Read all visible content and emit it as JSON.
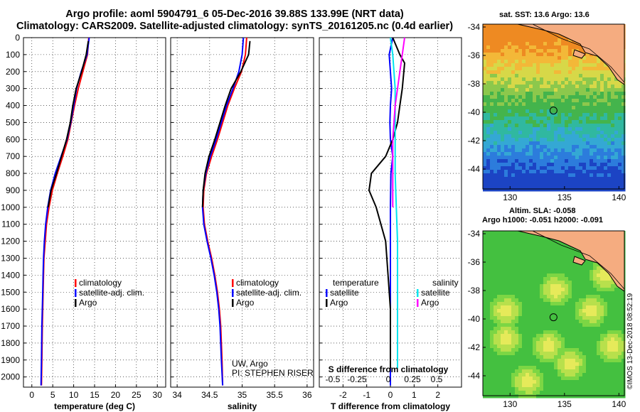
{
  "header": {
    "title_line1": "Argo profile: aoml 5904791_6 05-Dec-2016 39.88S 133.99E (NRT data)",
    "title_line2": "Climatology: CARS2009. Satellite-adjusted climatology: synTS_20161205.nc (0.4d earlier)"
  },
  "colors": {
    "climatology": "#ff0000",
    "satellite": "#0000ff",
    "argo": "#000000",
    "sat_salinity": "#00e5ee",
    "argo_salinity": "#ff00ff"
  },
  "depth_ticks": [
    "0",
    "100",
    "200",
    "300",
    "400",
    "500",
    "600",
    "700",
    "800",
    "900",
    "1000",
    "1100",
    "1200",
    "1300",
    "1400",
    "1500",
    "1600",
    "1700",
    "1800",
    "1900",
    "2000"
  ],
  "chart_data": [
    {
      "type": "line",
      "xlabel": "temperature (deg C)",
      "xticks": [
        "0",
        "5",
        "10",
        "15",
        "20",
        "25",
        "30"
      ],
      "xlim": [
        -2,
        32
      ],
      "ylim": [
        2060,
        0
      ],
      "legend": [
        "climatology",
        "satellite-adj. clim.",
        "Argo"
      ],
      "series": [
        {
          "name": "climatology",
          "x": [
            13.6,
            13.3,
            12.2,
            11.1,
            10.2,
            9.4,
            8.6,
            7.4,
            6.1,
            4.9,
            4.1,
            3.5,
            3.2,
            2.9,
            2.8,
            2.7,
            2.6,
            2.5,
            2.4,
            2.3
          ],
          "y": [
            0,
            100,
            200,
            300,
            400,
            500,
            600,
            700,
            800,
            900,
            1000,
            1100,
            1200,
            1300,
            1400,
            1500,
            1600,
            1700,
            1900,
            2050
          ]
        },
        {
          "name": "satellite-adj. clim.",
          "x": [
            13.7,
            13.2,
            11.8,
            10.7,
            10.0,
            9.3,
            8.4,
            7.0,
            5.6,
            4.5,
            3.8,
            3.3,
            3.0,
            2.8,
            2.7,
            2.6,
            2.5,
            2.4,
            2.3,
            2.2
          ],
          "y": [
            0,
            100,
            200,
            300,
            400,
            500,
            600,
            700,
            800,
            900,
            1000,
            1100,
            1200,
            1300,
            1400,
            1500,
            1600,
            1700,
            1900,
            2050
          ]
        },
        {
          "name": "Argo",
          "x": [
            13.5,
            13.0,
            11.9,
            10.6,
            9.8,
            9.2,
            8.3,
            7.1,
            5.9,
            4.6,
            3.9
          ],
          "y": [
            20,
            100,
            200,
            300,
            400,
            500,
            600,
            700,
            800,
            900,
            1000
          ]
        }
      ]
    },
    {
      "type": "line",
      "xlabel": "salinity",
      "xticks": [
        "34",
        "34.5",
        "35",
        "35.5",
        "36"
      ],
      "xlim": [
        33.9,
        36.1
      ],
      "ylim": [
        2060,
        0
      ],
      "legend": [
        "climatology",
        "satellite-adj. clim.",
        "Argo"
      ],
      "annotations": [
        "UW, Argo",
        "PI: STEPHEN RISER"
      ],
      "series": [
        {
          "name": "climatology",
          "x": [
            35.07,
            35.05,
            34.99,
            34.88,
            34.78,
            34.7,
            34.62,
            34.53,
            34.45,
            34.41,
            34.4,
            34.42,
            34.47,
            34.53,
            34.58,
            34.62,
            34.65,
            34.67,
            34.69,
            34.7
          ],
          "y": [
            0,
            100,
            200,
            300,
            400,
            500,
            600,
            700,
            800,
            900,
            1000,
            1100,
            1200,
            1300,
            1400,
            1500,
            1600,
            1700,
            1900,
            2050
          ]
        },
        {
          "name": "satellite-adj. clim.",
          "x": [
            35.02,
            35.0,
            34.95,
            34.86,
            34.76,
            34.68,
            34.6,
            34.51,
            34.44,
            34.4,
            34.39,
            34.41,
            34.46,
            34.52,
            34.57,
            34.61,
            34.64,
            34.66,
            34.68,
            34.7
          ],
          "y": [
            0,
            100,
            200,
            300,
            400,
            500,
            600,
            700,
            800,
            900,
            1000,
            1100,
            1200,
            1300,
            1400,
            1500,
            1600,
            1700,
            1900,
            2050
          ]
        },
        {
          "name": "Argo",
          "x": [
            35.12,
            35.1,
            34.98,
            34.83,
            34.74,
            34.66,
            34.58,
            34.49,
            34.43,
            34.4,
            34.39
          ],
          "y": [
            20,
            100,
            200,
            300,
            400,
            500,
            600,
            700,
            800,
            900,
            1000
          ]
        }
      ]
    },
    {
      "type": "line",
      "xlabel": "T difference from climatology",
      "title": "S difference from climatology",
      "xticks": [
        "-2",
        "-1",
        "0",
        "1",
        "2"
      ],
      "sticks": [
        "-0.5",
        "-0.25",
        "0",
        "0.25",
        "0.5"
      ],
      "xlim": [
        -3,
        3
      ],
      "ylim": [
        2060,
        0
      ],
      "legend": {
        "heading_temperature": "temperature",
        "heading_salinity": "salinity",
        "satellite": "satellite",
        "argo": "Argo"
      },
      "series": [
        {
          "name": "satellite",
          "x": [
            0.1,
            -0.05,
            0.0,
            0.05,
            0.0,
            -0.02,
            0.0,
            0.1,
            0.02,
            0.0,
            0.0,
            0.0,
            0.0,
            0.0,
            0.0,
            0.0
          ],
          "y": [
            0,
            100,
            200,
            300,
            400,
            500,
            600,
            700,
            800,
            1000,
            1200,
            1400,
            1600,
            1800,
            1950,
            2050
          ]
        },
        {
          "name": "Argo",
          "x": [
            0.1,
            0.4,
            0.6,
            0.5,
            0.4,
            0.3,
            0.1,
            -0.2,
            -0.8,
            -0.9,
            -0.6,
            -0.2,
            -0.1,
            0.0,
            0.0,
            0.0
          ],
          "y": [
            0,
            100,
            150,
            300,
            400,
            500,
            600,
            700,
            800,
            900,
            1000,
            1200,
            1400,
            1600,
            1800,
            1950
          ]
        },
        {
          "name": "satellite salinity",
          "x": [
            0.0,
            0.1,
            0.15,
            0.2,
            0.2,
            0.2,
            0.2,
            0.25,
            0.3,
            0.3,
            0.3,
            0.3,
            0.3
          ],
          "y": [
            0,
            100,
            200,
            300,
            400,
            600,
            800,
            1000,
            1200,
            1400,
            1600,
            1800,
            1950
          ]
        },
        {
          "name": "Argo salinity",
          "x": [
            0.6,
            0.5,
            0.4,
            0.3,
            0.2,
            0.15,
            0.1,
            0.1,
            0.1,
            0.1,
            0.1
          ],
          "y": [
            0,
            100,
            200,
            300,
            400,
            500,
            600,
            700,
            800,
            900,
            1000
          ]
        }
      ]
    }
  ],
  "maps": {
    "sst": {
      "label": "sat. SST: 13.6 Argo: 13.6",
      "lat_ticks": [
        "-34",
        "-36",
        "-38",
        "-40",
        "-42",
        "-44"
      ],
      "lon_ticks": [
        "130",
        "135",
        "140"
      ]
    },
    "sla": {
      "label1": "Altim. SLA: -0.058",
      "label2": "Argo h1000: -0.051 h2000: -0.091",
      "lat_ticks": [
        "-34",
        "-36",
        "-38",
        "-40",
        "-42",
        "-44"
      ],
      "lon_ticks": [
        "130",
        "135",
        "140"
      ]
    }
  },
  "credit": "©IMOS 13-Dec-2018 08:52:19"
}
